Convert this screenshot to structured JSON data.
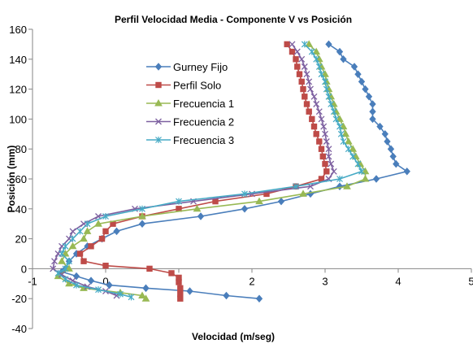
{
  "chart_data": {
    "type": "scatter",
    "title": "Perfil Velocidad Media - Componente V vs Posición",
    "xlabel": "Velocidad (m/seg)",
    "ylabel": "Posición (mm)",
    "xlim": [
      -1,
      5
    ],
    "ylim": [
      -40,
      160
    ],
    "xticks": [
      -1,
      0,
      1,
      2,
      3,
      4,
      5
    ],
    "yticks": [
      -40,
      -20,
      0,
      20,
      40,
      60,
      80,
      100,
      120,
      140,
      160
    ],
    "grid": false,
    "legend_position": "left-center",
    "series": [
      {
        "name": "Gurney Fijo",
        "color": "#4a7ebb",
        "marker": "diamond",
        "points": [
          [
            3.05,
            150
          ],
          [
            3.2,
            145
          ],
          [
            3.25,
            140
          ],
          [
            3.4,
            135
          ],
          [
            3.45,
            130
          ],
          [
            3.5,
            125
          ],
          [
            3.55,
            120
          ],
          [
            3.6,
            115
          ],
          [
            3.65,
            110
          ],
          [
            3.65,
            105
          ],
          [
            3.65,
            100
          ],
          [
            3.75,
            95
          ],
          [
            3.82,
            90
          ],
          [
            3.85,
            85
          ],
          [
            3.9,
            80
          ],
          [
            3.93,
            75
          ],
          [
            3.97,
            70
          ],
          [
            4.12,
            65
          ],
          [
            3.7,
            60
          ],
          [
            3.2,
            55
          ],
          [
            2.8,
            50
          ],
          [
            2.4,
            45
          ],
          [
            1.9,
            40
          ],
          [
            1.3,
            35
          ],
          [
            0.5,
            30
          ],
          [
            0.15,
            25
          ],
          [
            -0.05,
            20
          ],
          [
            -0.25,
            15
          ],
          [
            -0.4,
            10
          ],
          [
            -0.5,
            5
          ],
          [
            -0.55,
            0
          ],
          [
            -0.6,
            -2
          ],
          [
            -0.4,
            -5
          ],
          [
            -0.2,
            -8
          ],
          [
            0.05,
            -11
          ],
          [
            0.55,
            -13
          ],
          [
            1.15,
            -15
          ],
          [
            1.65,
            -18
          ],
          [
            2.1,
            -20
          ]
        ]
      },
      {
        "name": "Perfil Solo",
        "color": "#be4b48",
        "marker": "square",
        "points": [
          [
            2.48,
            150
          ],
          [
            2.55,
            145
          ],
          [
            2.6,
            140
          ],
          [
            2.62,
            135
          ],
          [
            2.65,
            130
          ],
          [
            2.68,
            125
          ],
          [
            2.7,
            120
          ],
          [
            2.72,
            115
          ],
          [
            2.75,
            110
          ],
          [
            2.78,
            105
          ],
          [
            2.82,
            100
          ],
          [
            2.85,
            95
          ],
          [
            2.88,
            90
          ],
          [
            2.92,
            85
          ],
          [
            2.95,
            80
          ],
          [
            2.97,
            75
          ],
          [
            3.0,
            70
          ],
          [
            3.02,
            65
          ],
          [
            2.95,
            60
          ],
          [
            2.6,
            55
          ],
          [
            2.2,
            50
          ],
          [
            1.5,
            45
          ],
          [
            1.0,
            40
          ],
          [
            0.5,
            35
          ],
          [
            0.1,
            30
          ],
          [
            0.0,
            25
          ],
          [
            -0.05,
            20
          ],
          [
            -0.2,
            15
          ],
          [
            -0.35,
            10
          ],
          [
            -0.3,
            5
          ],
          [
            0.0,
            2
          ],
          [
            0.6,
            0
          ],
          [
            0.9,
            -3
          ],
          [
            1.0,
            -6
          ],
          [
            1.0,
            -9
          ],
          [
            1.02,
            -13
          ],
          [
            1.02,
            -17
          ],
          [
            1.02,
            -20
          ]
        ]
      },
      {
        "name": "Frecuencia 1",
        "color": "#98b954",
        "marker": "triangle",
        "points": [
          [
            2.78,
            150
          ],
          [
            2.88,
            145
          ],
          [
            2.92,
            140
          ],
          [
            2.95,
            135
          ],
          [
            3.0,
            130
          ],
          [
            3.02,
            125
          ],
          [
            3.05,
            120
          ],
          [
            3.08,
            115
          ],
          [
            3.12,
            110
          ],
          [
            3.15,
            105
          ],
          [
            3.2,
            100
          ],
          [
            3.25,
            95
          ],
          [
            3.28,
            90
          ],
          [
            3.32,
            85
          ],
          [
            3.38,
            80
          ],
          [
            3.42,
            75
          ],
          [
            3.48,
            70
          ],
          [
            3.55,
            65
          ],
          [
            3.55,
            60
          ],
          [
            3.3,
            55
          ],
          [
            2.7,
            50
          ],
          [
            2.1,
            45
          ],
          [
            1.25,
            40
          ],
          [
            0.5,
            35
          ],
          [
            -0.1,
            30
          ],
          [
            -0.25,
            25
          ],
          [
            -0.3,
            20
          ],
          [
            -0.45,
            15
          ],
          [
            -0.55,
            10
          ],
          [
            -0.6,
            5
          ],
          [
            -0.5,
            0
          ],
          [
            -0.65,
            -5
          ],
          [
            -0.5,
            -10
          ],
          [
            -0.3,
            -13
          ],
          [
            0.2,
            -16
          ],
          [
            0.5,
            -18
          ],
          [
            0.55,
            -20
          ]
        ]
      },
      {
        "name": "Frecuencia 2",
        "color": "#7d60a0",
        "marker": "x",
        "points": [
          [
            2.55,
            150
          ],
          [
            2.62,
            145
          ],
          [
            2.68,
            140
          ],
          [
            2.72,
            135
          ],
          [
            2.75,
            130
          ],
          [
            2.78,
            125
          ],
          [
            2.8,
            120
          ],
          [
            2.85,
            115
          ],
          [
            2.88,
            110
          ],
          [
            2.92,
            105
          ],
          [
            2.95,
            100
          ],
          [
            2.98,
            95
          ],
          [
            3.0,
            90
          ],
          [
            3.02,
            85
          ],
          [
            3.05,
            80
          ],
          [
            3.05,
            75
          ],
          [
            3.08,
            70
          ],
          [
            3.12,
            65
          ],
          [
            3.05,
            60
          ],
          [
            2.8,
            55
          ],
          [
            2.0,
            50
          ],
          [
            1.2,
            45
          ],
          [
            0.4,
            40
          ],
          [
            -0.1,
            35
          ],
          [
            -0.3,
            30
          ],
          [
            -0.45,
            25
          ],
          [
            -0.5,
            20
          ],
          [
            -0.6,
            15
          ],
          [
            -0.65,
            10
          ],
          [
            -0.7,
            5
          ],
          [
            -0.72,
            0
          ],
          [
            -0.6,
            -4
          ],
          [
            -0.45,
            -8
          ],
          [
            -0.25,
            -12
          ],
          [
            0.0,
            -15
          ],
          [
            0.15,
            -18
          ]
        ]
      },
      {
        "name": "Frecuencia 3",
        "color": "#46aac5",
        "marker": "star",
        "points": [
          [
            2.72,
            150
          ],
          [
            2.82,
            145
          ],
          [
            2.88,
            140
          ],
          [
            2.92,
            135
          ],
          [
            2.95,
            130
          ],
          [
            3.0,
            125
          ],
          [
            3.02,
            120
          ],
          [
            3.05,
            115
          ],
          [
            3.08,
            110
          ],
          [
            3.12,
            105
          ],
          [
            3.15,
            100
          ],
          [
            3.2,
            95
          ],
          [
            3.22,
            90
          ],
          [
            3.25,
            85
          ],
          [
            3.32,
            80
          ],
          [
            3.38,
            75
          ],
          [
            3.45,
            70
          ],
          [
            3.5,
            65
          ],
          [
            3.2,
            60
          ],
          [
            2.6,
            55
          ],
          [
            1.9,
            50
          ],
          [
            1.0,
            45
          ],
          [
            0.5,
            40
          ],
          [
            0.0,
            35
          ],
          [
            -0.25,
            30
          ],
          [
            -0.35,
            25
          ],
          [
            -0.45,
            20
          ],
          [
            -0.55,
            15
          ],
          [
            -0.6,
            10
          ],
          [
            -0.5,
            5
          ],
          [
            -0.55,
            0
          ],
          [
            -0.65,
            -3
          ],
          [
            -0.55,
            -7
          ],
          [
            -0.4,
            -11
          ],
          [
            -0.1,
            -14
          ],
          [
            0.2,
            -17
          ],
          [
            0.35,
            -19
          ]
        ]
      }
    ]
  }
}
